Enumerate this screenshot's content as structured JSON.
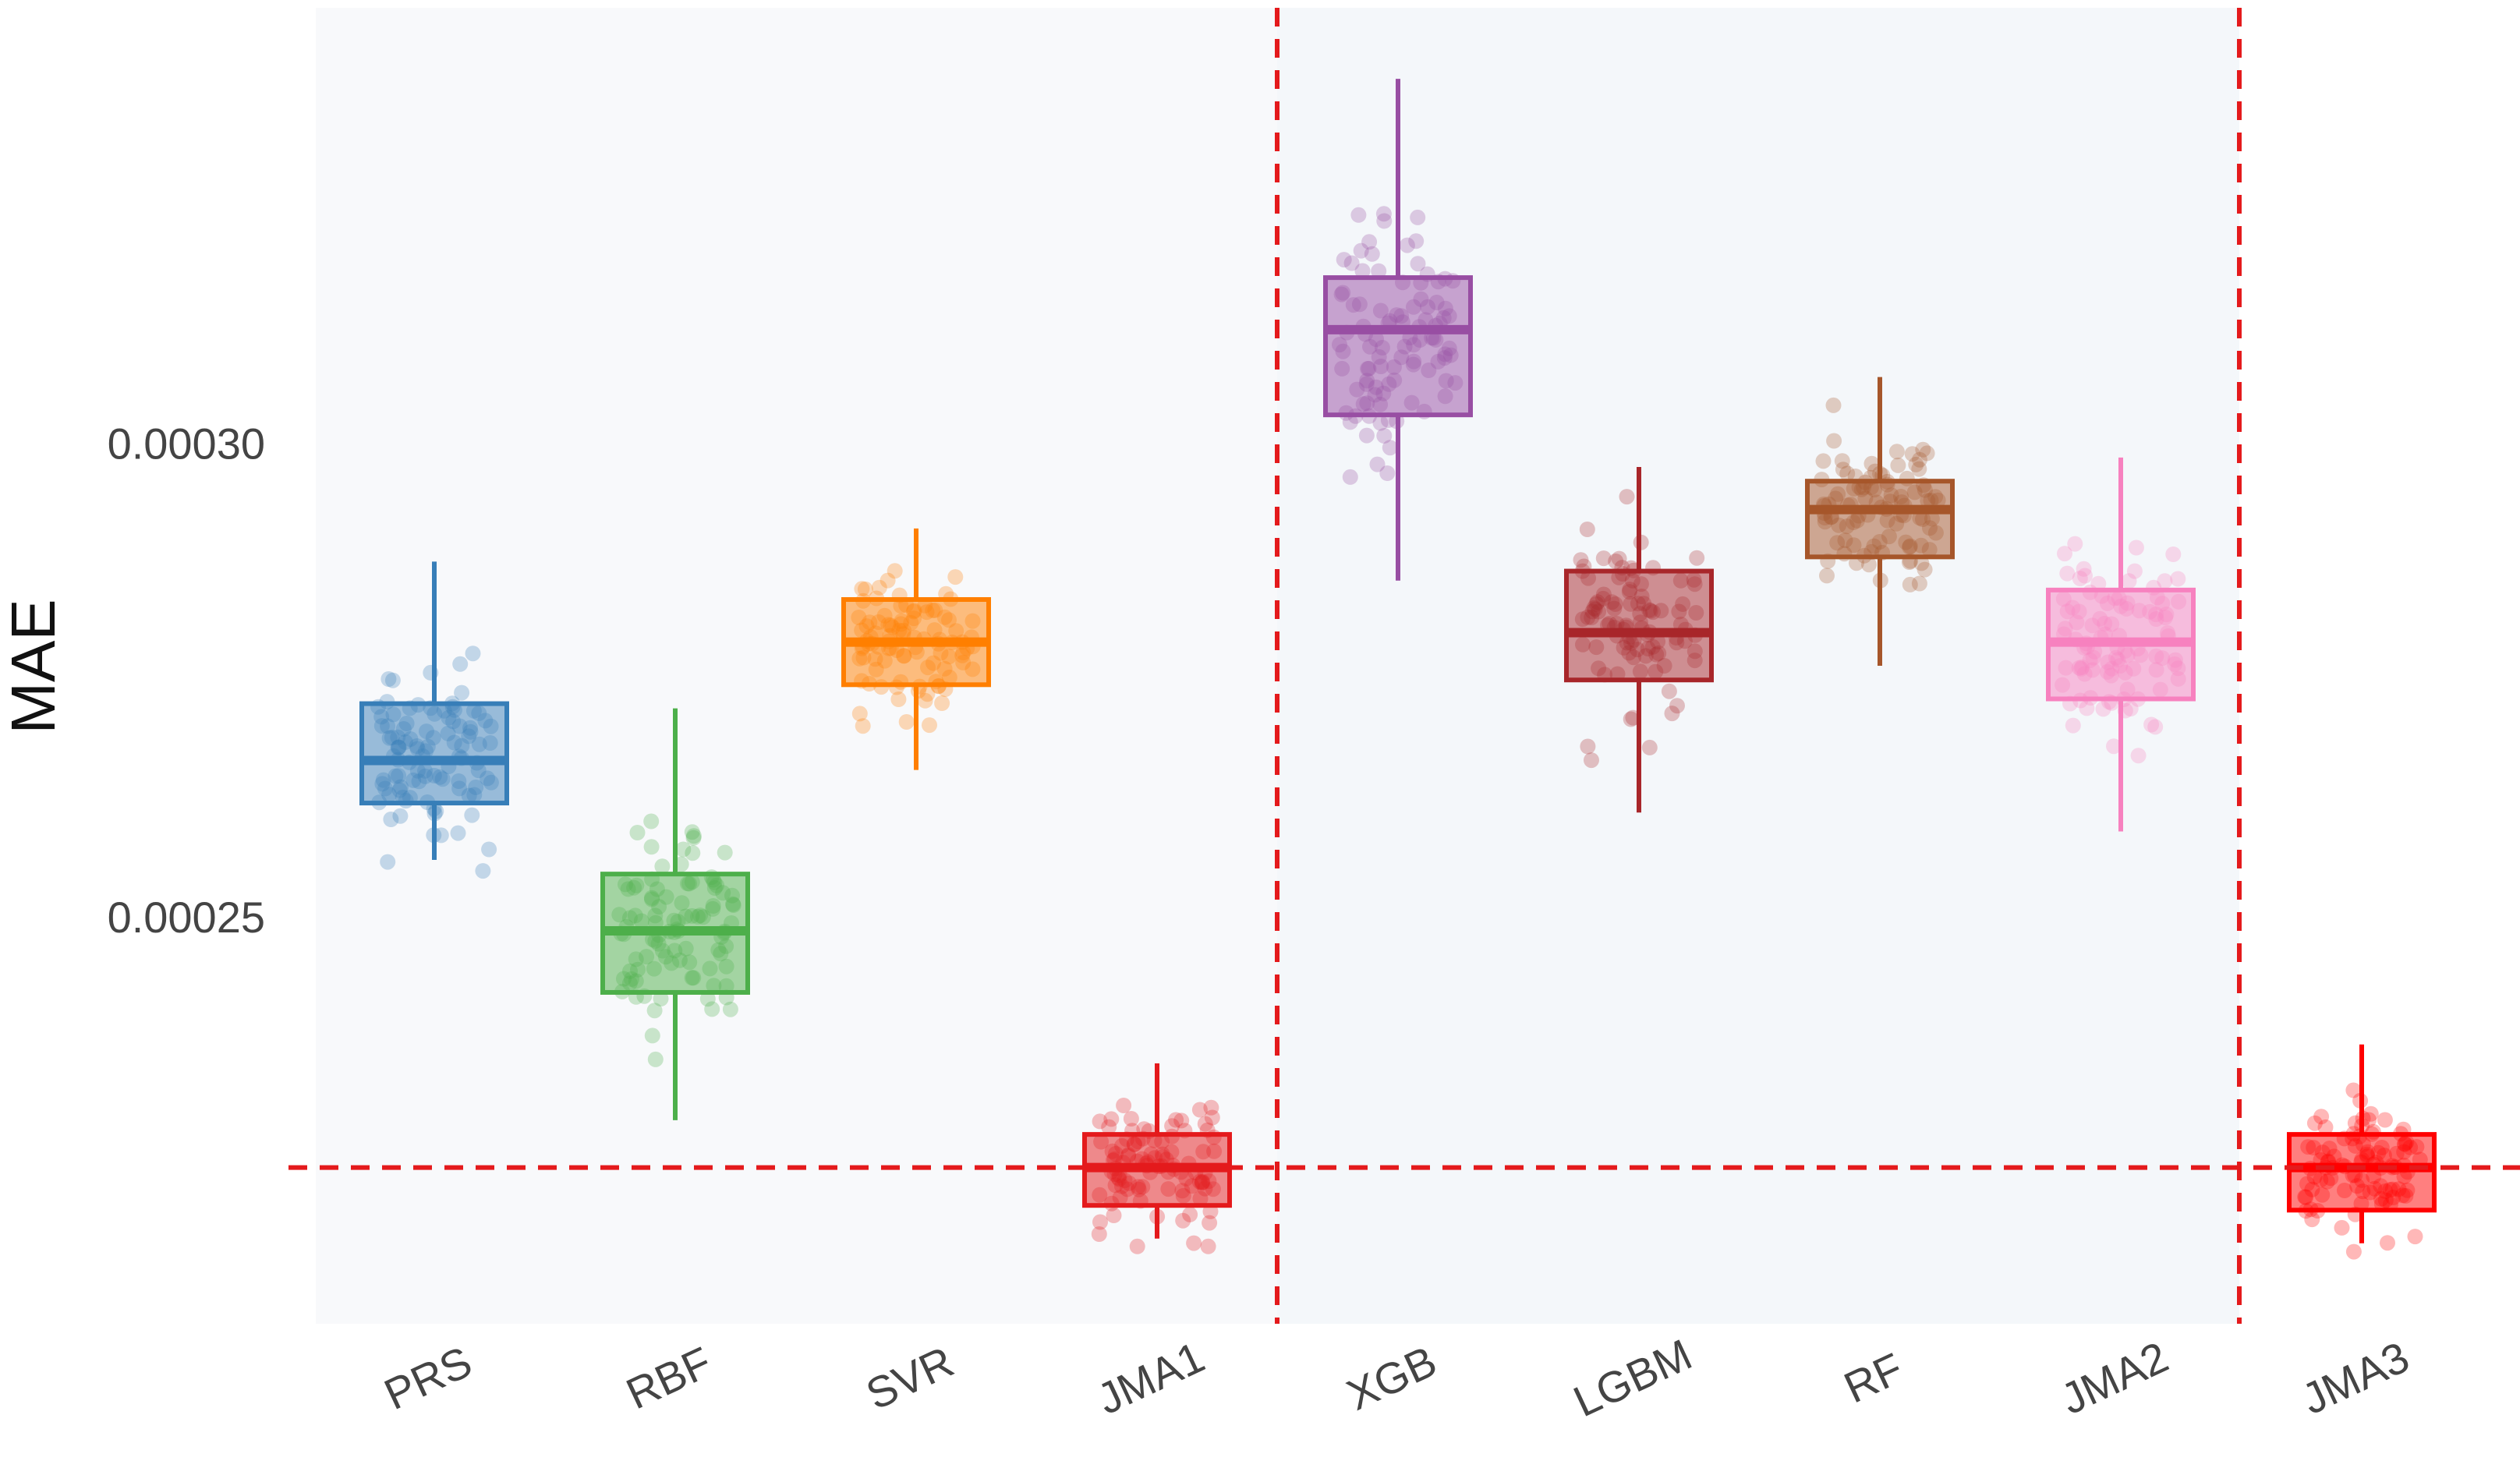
{
  "chart_data": {
    "type": "box",
    "title": "",
    "xlabel": "",
    "ylabel": "MAE",
    "ylim": [
      0.000207,
      0.000346
    ],
    "yticks": [
      0.00025,
      0.0003
    ],
    "ytick_labels": [
      "0.00025",
      "0.00030"
    ],
    "reference_line_y": 0.0002235,
    "grid": false,
    "groups": [
      {
        "name": "group-1",
        "categories": [
          "PRS",
          "RBF",
          "SVR",
          "JMA1"
        ],
        "background": "#f8f9fb"
      },
      {
        "name": "group-2",
        "categories": [
          "XGB",
          "LGBM",
          "RF",
          "JMA2"
        ],
        "background": "#f4f7fa"
      },
      {
        "name": "group-3",
        "categories": [
          "JMA3"
        ],
        "background": "#ffffff"
      }
    ],
    "boxes": [
      {
        "label": "PRS",
        "color": "#377eb8",
        "whisker_low": 0.000256,
        "q1": 0.000262,
        "median": 0.0002665,
        "q3": 0.0002725,
        "whisker_high": 0.0002875
      },
      {
        "label": "RBF",
        "color": "#4daf4a",
        "whisker_low": 0.0002285,
        "q1": 0.000242,
        "median": 0.0002485,
        "q3": 0.0002545,
        "whisker_high": 0.000272
      },
      {
        "label": "SVR",
        "color": "#ff7f00",
        "whisker_low": 0.0002655,
        "q1": 0.0002745,
        "median": 0.000279,
        "q3": 0.0002835,
        "whisker_high": 0.000291
      },
      {
        "label": "JMA1",
        "color": "#e41a1c",
        "whisker_low": 0.000216,
        "q1": 0.0002195,
        "median": 0.0002235,
        "q3": 0.000227,
        "whisker_high": 0.0002345
      },
      {
        "label": "XGB",
        "color": "#984ea3",
        "whisker_low": 0.0002855,
        "q1": 0.000303,
        "median": 0.000312,
        "q3": 0.0003175,
        "whisker_high": 0.0003385
      },
      {
        "label": "LGBM",
        "color": "#a8262a",
        "whisker_low": 0.000261,
        "q1": 0.000275,
        "median": 0.00028,
        "q3": 0.0002865,
        "whisker_high": 0.0002975
      },
      {
        "label": "RF",
        "color": "#a6562a",
        "whisker_low": 0.0002765,
        "q1": 0.000288,
        "median": 0.000293,
        "q3": 0.000296,
        "whisker_high": 0.000307
      },
      {
        "label": "JMA2",
        "color": "#f781bf",
        "whisker_low": 0.000259,
        "q1": 0.000273,
        "median": 0.000279,
        "q3": 0.0002845,
        "whisker_high": 0.0002985
      },
      {
        "label": "JMA3",
        "color": "#ff0000",
        "whisker_low": 0.0002155,
        "q1": 0.000219,
        "median": 0.0002235,
        "q3": 0.000227,
        "whisker_high": 0.0002365
      }
    ]
  }
}
